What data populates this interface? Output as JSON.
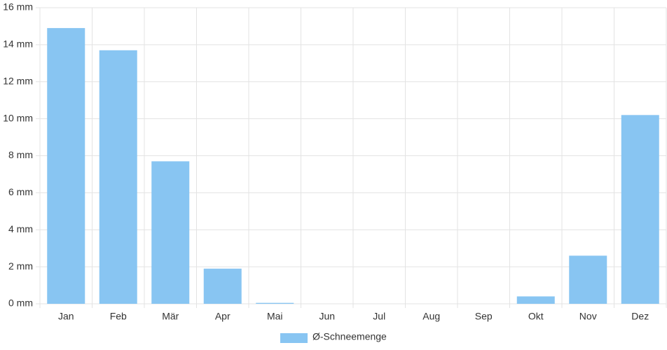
{
  "chart_data": {
    "type": "bar",
    "categories": [
      "Jan",
      "Feb",
      "Mär",
      "Apr",
      "Mai",
      "Jun",
      "Jul",
      "Aug",
      "Sep",
      "Okt",
      "Nov",
      "Dez"
    ],
    "series": [
      {
        "name": "Ø-Schneemenge",
        "color": "#88c5f2",
        "values": [
          14.9,
          13.7,
          7.7,
          1.9,
          0.05,
          0,
          0,
          0,
          0,
          0.4,
          2.6,
          10.2
        ]
      }
    ],
    "ylim": [
      0,
      16
    ],
    "yticks": [
      {
        "value": 0,
        "label": "0 mm"
      },
      {
        "value": 2,
        "label": "2 mm"
      },
      {
        "value": 4,
        "label": "4 mm"
      },
      {
        "value": 6,
        "label": "6 mm"
      },
      {
        "value": 8,
        "label": "8 mm"
      },
      {
        "value": 10,
        "label": "10 mm"
      },
      {
        "value": 12,
        "label": "12 mm"
      },
      {
        "value": 14,
        "label": "14 mm"
      },
      {
        "value": 16,
        "label": "16 mm"
      }
    ],
    "grid": true,
    "legend": "bottom"
  }
}
